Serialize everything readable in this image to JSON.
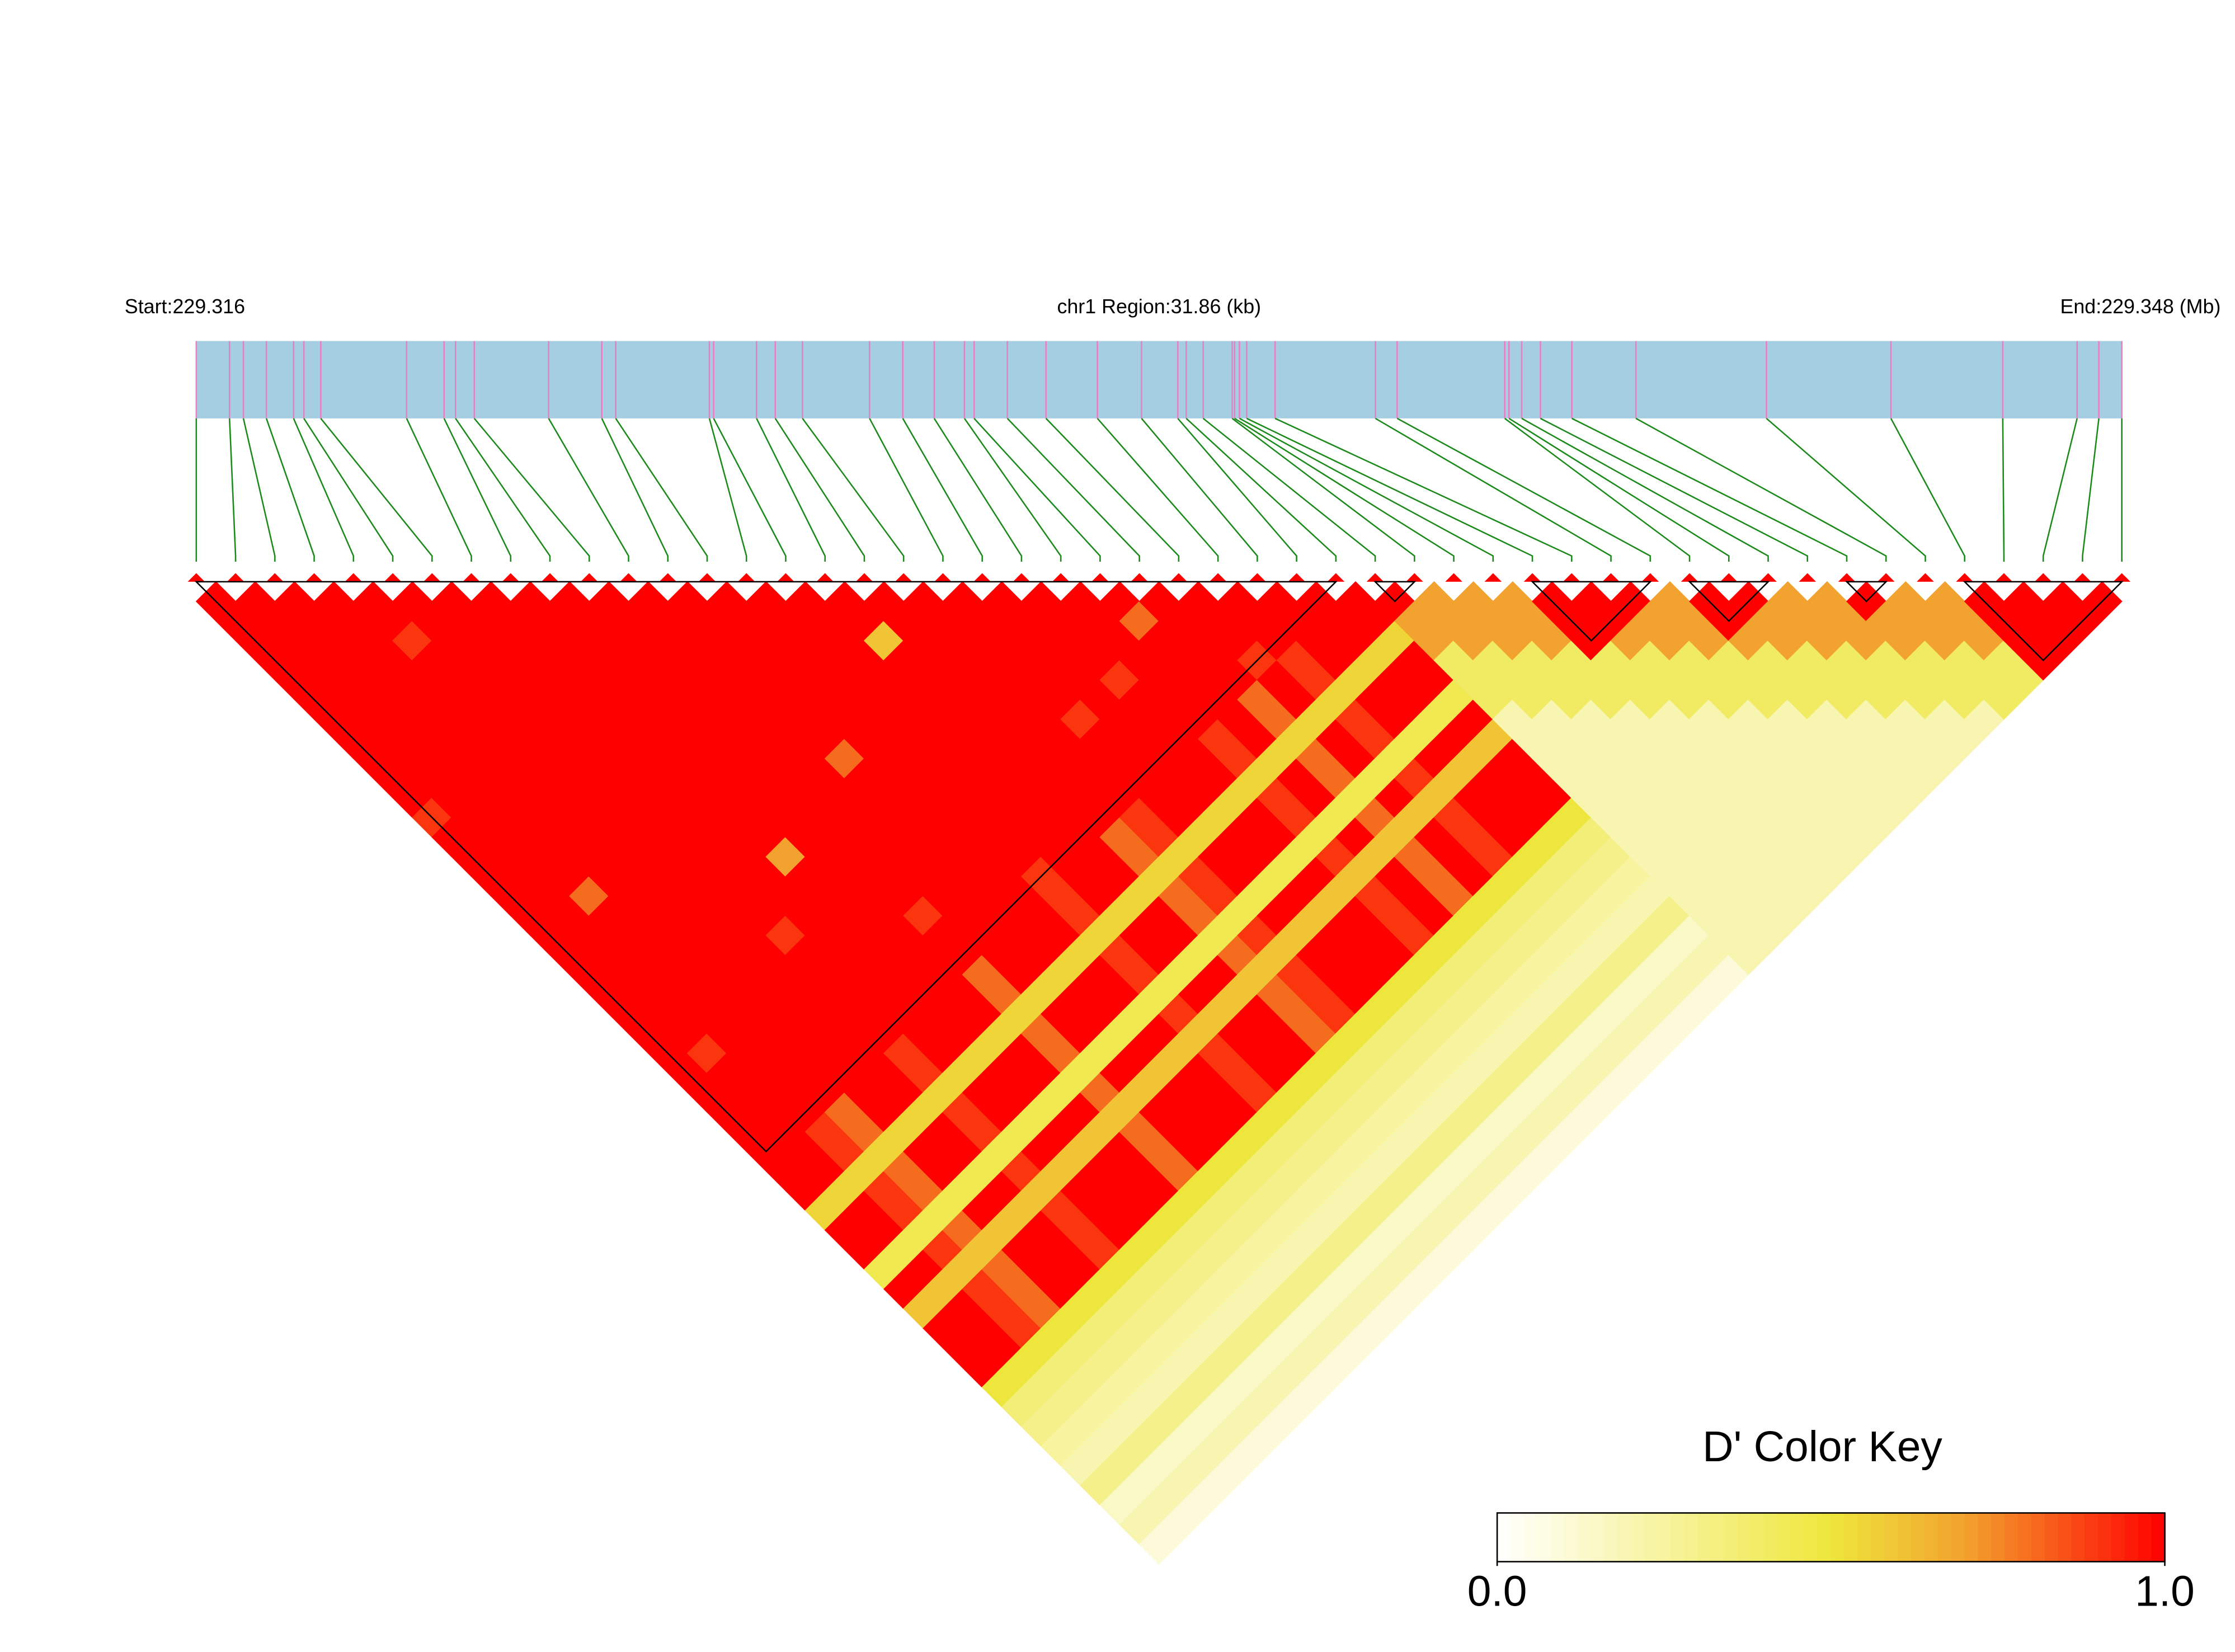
{
  "chart_data": {
    "type": "heatmap",
    "start_label": "Start:229.316",
    "region_label": "chr1 Region:31.86 (kb)",
    "end_label": "End:229.348 (Mb)",
    "xlim": [
      0,
      31.86
    ],
    "positions": [
      0,
      0.55,
      0.78,
      1.16,
      1.61,
      1.78,
      2.06,
      3.48,
      4.1,
      4.29,
      4.6,
      5.83,
      6.71,
      6.94,
      8.49,
      8.56,
      9.27,
      9.58,
      10.03,
      11.14,
      11.69,
      12.21,
      12.71,
      12.87,
      13.42,
      14.06,
      14.91,
      15.64,
      16.24,
      16.38,
      16.66,
      17.14,
      17.18,
      17.26,
      17.38,
      17.85,
      19.51,
      19.87,
      21.65,
      21.72,
      21.93,
      22.24,
      22.76,
      23.82,
      25.98,
      28.04,
      29.89,
      31.12,
      31.48,
      31.86
    ],
    "matrix": [
      [
        1,
        1,
        1,
        1,
        1,
        1,
        1,
        1,
        1,
        1,
        1,
        0.9,
        1,
        1,
        1,
        1,
        1,
        1,
        1,
        1,
        1,
        1,
        1,
        1,
        1,
        1,
        1,
        1,
        1,
        1,
        1,
        0.55,
        1,
        1,
        0.45,
        1,
        0.6,
        1,
        1,
        1,
        0.5,
        0.35,
        0.3,
        0.25,
        0.2,
        0.3,
        0.15,
        0.2,
        0.1
      ],
      [
        1,
        1,
        1,
        1,
        1,
        1,
        1,
        1,
        1,
        1,
        1,
        1,
        1,
        1,
        1,
        1,
        1,
        1,
        1,
        1,
        1,
        1,
        1,
        0.9,
        1,
        1,
        1,
        1,
        1,
        1,
        0.55,
        1,
        1,
        0.45,
        1,
        0.6,
        1,
        1,
        1,
        0.5,
        0.35,
        0.3,
        0.25,
        0.2,
        0.3,
        0.15,
        0.2,
        0.1
      ],
      [
        1,
        1,
        1,
        1,
        1,
        1,
        1,
        1,
        1,
        1,
        1,
        1,
        1,
        1,
        1,
        0.8,
        1,
        1,
        1,
        1,
        1,
        1,
        1,
        1,
        1,
        1,
        1,
        0.9,
        0.9,
        0.55,
        0.9,
        0.9,
        0.45,
        0.9,
        0.6,
        0.9,
        0.9,
        0.9,
        0.5,
        0.35,
        0.3,
        0.25,
        0.2,
        0.3,
        0.15,
        0.2,
        0.1
      ],
      [
        1,
        1,
        1,
        1,
        1,
        1,
        1,
        1,
        1,
        1,
        1,
        1,
        1,
        1,
        1,
        1,
        1,
        1,
        1,
        1,
        1,
        1,
        1,
        1,
        1,
        1,
        0.8,
        0.8,
        0.55,
        0.8,
        0.8,
        0.45,
        0.8,
        0.6,
        0.8,
        0.8,
        0.8,
        0.5,
        0.35,
        0.3,
        0.25,
        0.2,
        0.3,
        0.15,
        0.2,
        0.1
      ],
      [
        1,
        1,
        0.9,
        1,
        1,
        1,
        1,
        1,
        1,
        1,
        1,
        1,
        1,
        1,
        1,
        1,
        1,
        1,
        1,
        1,
        1,
        1,
        1,
        1,
        1,
        1,
        1,
        0.55,
        1,
        1,
        0.45,
        1,
        0.6,
        1,
        1,
        1,
        0.5,
        0.35,
        0.3,
        0.25,
        0.2,
        0.3,
        0.15,
        0.2,
        0.1
      ],
      [
        1,
        1,
        1,
        1,
        1,
        1,
        1,
        1,
        1,
        1,
        1,
        1,
        1,
        1,
        1,
        1,
        1,
        1,
        1,
        1,
        1,
        1,
        1,
        1,
        1,
        1,
        0.55,
        1,
        1,
        0.45,
        1,
        0.6,
        1,
        1,
        1,
        0.5,
        0.35,
        0.3,
        0.25,
        0.2,
        0.3,
        0.15,
        0.2,
        0.1
      ],
      [
        1,
        1,
        1,
        1,
        1,
        1,
        1,
        1,
        1,
        1,
        1,
        1,
        1,
        1,
        1,
        1,
        1,
        0.9,
        1,
        1,
        1,
        1,
        1,
        0.9,
        0.9,
        0.55,
        0.9,
        0.9,
        0.45,
        0.9,
        0.6,
        0.9,
        0.9,
        0.9,
        0.5,
        0.35,
        0.3,
        0.25,
        0.2,
        0.3,
        0.15,
        0.2,
        0.1
      ],
      [
        1,
        1,
        1,
        1,
        1,
        1,
        1,
        1,
        1,
        1,
        1,
        1,
        1,
        1,
        1,
        1,
        1,
        1,
        1,
        1,
        1,
        1,
        1,
        1,
        0.55,
        1,
        1,
        0.45,
        1,
        0.6,
        1,
        1,
        1,
        0.5,
        0.35,
        0.3,
        0.25,
        0.2,
        0.3,
        0.15,
        0.2,
        0.1
      ],
      [
        1,
        1,
        1,
        1,
        1,
        1,
        1,
        1,
        1,
        1,
        1,
        1,
        1,
        0.7,
        1,
        1,
        1,
        1,
        1,
        1,
        1,
        1,
        1,
        0.55,
        1,
        1,
        0.45,
        1,
        0.6,
        1,
        1,
        1,
        0.5,
        0.35,
        0.3,
        0.25,
        0.2,
        0.3,
        0.15,
        0.2,
        0.1
      ],
      [
        1,
        1,
        1,
        1,
        1,
        1,
        1,
        1,
        1,
        1,
        1,
        1,
        1,
        1,
        1,
        1,
        1,
        1,
        1,
        1,
        1,
        1,
        0.55,
        1,
        1,
        0.45,
        1,
        0.6,
        1,
        1,
        1,
        0.5,
        0.35,
        0.3,
        0.25,
        0.2,
        0.3,
        0.15,
        0.2,
        0.1
      ],
      [
        1,
        1,
        1,
        1,
        1,
        1,
        1,
        1,
        1,
        1,
        1,
        1,
        1,
        1,
        1,
        1,
        0.9,
        1,
        1,
        0.8,
        0.8,
        0.55,
        0.8,
        0.8,
        0.45,
        0.8,
        0.6,
        0.8,
        0.8,
        0.8,
        0.5,
        0.35,
        0.3,
        0.25,
        0.2,
        0.3,
        0.15,
        0.2,
        0.1
      ],
      [
        1,
        1,
        1,
        1,
        1,
        1,
        1,
        1,
        1,
        1,
        1,
        1,
        1,
        1,
        1,
        1,
        1,
        1,
        1,
        1,
        0.55,
        1,
        1,
        0.45,
        1,
        0.6,
        1,
        1,
        1,
        0.5,
        0.35,
        0.3,
        0.25,
        0.2,
        0.3,
        0.15,
        0.2,
        0.1
      ],
      [
        1,
        1,
        1,
        1,
        1,
        1,
        1,
        1,
        0.8,
        1,
        1,
        1,
        1,
        1,
        1,
        1,
        1,
        1,
        1,
        0.55,
        1,
        1,
        0.45,
        1,
        0.6,
        1,
        1,
        1,
        0.5,
        0.35,
        0.3,
        0.25,
        0.2,
        0.3,
        0.15,
        0.2,
        0.1
      ],
      [
        1,
        1,
        1,
        1,
        1,
        1,
        1,
        1,
        1,
        1,
        1,
        1,
        1,
        1,
        1,
        1,
        1,
        1,
        0.55,
        1,
        1,
        0.45,
        1,
        0.6,
        1,
        1,
        1,
        0.5,
        0.35,
        0.3,
        0.25,
        0.2,
        0.3,
        0.15,
        0.2,
        0.1
      ],
      [
        1,
        1,
        1,
        1,
        1,
        1,
        1,
        1,
        1,
        1,
        1,
        1,
        1,
        1,
        0.9,
        0.9,
        0.9,
        0.55,
        0.9,
        0.9,
        0.45,
        0.9,
        0.6,
        0.9,
        0.9,
        0.9,
        0.5,
        0.35,
        0.3,
        0.25,
        0.2,
        0.3,
        0.15,
        0.2,
        0.1
      ],
      [
        1,
        1,
        1,
        1,
        1,
        1,
        1,
        1,
        1,
        1,
        1,
        1,
        1,
        1,
        1,
        1,
        0.55,
        1,
        1,
        0.45,
        1,
        0.6,
        1,
        1,
        1,
        0.5,
        0.35,
        0.3,
        0.25,
        0.2,
        0.3,
        0.15,
        0.2,
        0.1
      ],
      [
        1,
        1,
        0.6,
        1,
        1,
        1,
        1,
        1,
        1,
        1,
        1,
        1,
        1,
        1,
        1,
        0.55,
        1,
        1,
        0.45,
        1,
        0.6,
        1,
        1,
        1,
        0.5,
        0.35,
        0.3,
        0.25,
        0.2,
        0.3,
        0.15,
        0.2,
        0.1
      ],
      [
        1,
        1,
        1,
        1,
        1,
        1,
        1,
        1,
        1,
        1,
        1,
        1,
        0.8,
        0.8,
        0.55,
        0.8,
        0.8,
        0.45,
        0.8,
        0.6,
        0.8,
        0.8,
        0.8,
        0.5,
        0.35,
        0.3,
        0.25,
        0.2,
        0.3,
        0.15,
        0.2,
        0.1
      ],
      [
        1,
        1,
        1,
        1,
        1,
        1,
        1,
        1,
        1,
        1,
        1,
        0.9,
        0.9,
        0.55,
        0.9,
        0.9,
        0.45,
        0.9,
        0.6,
        0.9,
        0.9,
        0.9,
        0.5,
        0.35,
        0.3,
        0.25,
        0.2,
        0.3,
        0.15,
        0.2,
        0.1
      ],
      [
        1,
        1,
        1,
        1,
        1,
        1,
        0.9,
        1,
        1,
        1,
        1,
        1,
        0.55,
        1,
        1,
        0.45,
        1,
        0.6,
        1,
        1,
        1,
        0.5,
        0.35,
        0.3,
        0.25,
        0.2,
        0.3,
        0.15,
        0.2,
        0.1
      ],
      [
        1,
        1,
        1,
        1,
        1,
        1,
        1,
        1,
        1,
        1,
        1,
        0.55,
        1,
        1,
        0.45,
        1,
        0.6,
        1,
        1,
        1,
        0.5,
        0.35,
        0.3,
        0.25,
        0.2,
        0.3,
        0.15,
        0.2,
        0.1
      ],
      [
        1,
        1,
        1,
        1,
        0.9,
        1,
        1,
        1,
        1,
        1,
        0.55,
        1,
        1,
        0.45,
        1,
        0.6,
        1,
        1,
        1,
        0.5,
        0.35,
        0.3,
        0.25,
        0.2,
        0.3,
        0.15,
        0.2,
        0.1
      ],
      [
        1,
        1,
        1,
        1,
        1,
        1,
        1,
        0.9,
        0.9,
        0.55,
        0.9,
        0.9,
        0.45,
        0.9,
        0.6,
        0.9,
        0.9,
        0.9,
        0.5,
        0.35,
        0.3,
        0.25,
        0.2,
        0.3,
        0.15,
        0.2,
        0.1
      ],
      [
        1,
        0.8,
        1,
        1,
        1,
        1,
        1,
        1,
        0.55,
        1,
        1,
        0.45,
        1,
        0.6,
        1,
        1,
        1,
        0.5,
        0.35,
        0.3,
        0.25,
        0.2,
        0.3,
        0.15,
        0.2,
        0.1
      ],
      [
        1,
        1,
        1,
        1,
        1,
        0.8,
        0.8,
        0.55,
        0.8,
        0.8,
        0.45,
        0.8,
        0.6,
        0.8,
        0.8,
        0.8,
        0.5,
        0.35,
        0.3,
        0.25,
        0.2,
        0.3,
        0.15,
        0.2,
        0.1
      ],
      [
        1,
        1,
        1,
        0.9,
        1,
        1,
        0.55,
        1,
        1,
        0.45,
        1,
        0.6,
        1,
        1,
        1,
        0.5,
        0.35,
        0.3,
        0.25,
        0.2,
        0.3,
        0.15,
        0.2,
        0.1
      ],
      [
        1,
        1,
        1,
        0.9,
        0.9,
        0.55,
        0.9,
        0.9,
        0.45,
        0.9,
        0.6,
        0.9,
        0.9,
        0.9,
        0.5,
        0.35,
        0.3,
        0.25,
        0.2,
        0.3,
        0.15,
        0.2,
        0.1
      ],
      [
        1,
        1,
        1,
        1,
        0.55,
        1,
        1,
        0.45,
        1,
        0.6,
        1,
        1,
        1,
        0.5,
        0.35,
        0.3,
        0.25,
        0.2,
        0.3,
        0.15,
        0.2,
        0.1
      ],
      [
        1,
        1,
        1,
        0.55,
        1,
        1,
        0.45,
        1,
        0.6,
        1,
        1,
        1,
        0.5,
        0.35,
        0.3,
        0.25,
        0.2,
        0.3,
        0.15,
        0.2,
        0.1
      ],
      [
        1,
        1,
        0.55,
        1,
        1,
        0.45,
        1,
        0.6,
        1,
        1,
        1,
        0.5,
        0.35,
        0.3,
        0.25,
        0.2,
        0.3,
        0.15,
        0.2,
        0.1
      ],
      [
        1,
        0.7,
        0.7,
        0.4,
        0.4,
        0.4,
        0.2,
        0.2,
        0.2,
        0.2,
        0.2,
        0.2,
        0.2,
        0.2,
        0.2,
        0.2,
        0.2,
        0.2,
        0.2
      ],
      [
        0.7,
        0.7,
        0.7,
        0.4,
        0.4,
        0.4,
        0.2,
        0.2,
        0.2,
        0.2,
        0.2,
        0.2,
        0.2,
        0.2,
        0.2,
        0.2,
        0.2,
        0.2
      ],
      [
        0.7,
        0.7,
        0.7,
        0.4,
        0.4,
        0.4,
        0.2,
        0.2,
        0.2,
        0.2,
        0.2,
        0.2,
        0.2,
        0.2,
        0.2,
        0.2,
        0.2
      ],
      [
        0.7,
        0.7,
        0.7,
        0.4,
        0.4,
        0.4,
        0.2,
        0.2,
        0.2,
        0.2,
        0.2,
        0.2,
        0.2,
        0.2,
        0.2,
        0.2
      ],
      [
        1,
        1,
        1,
        0.4,
        0.4,
        0.4,
        0.2,
        0.2,
        0.2,
        0.2,
        0.2,
        0.2,
        0.2,
        0.2,
        0.2
      ],
      [
        1,
        1,
        0.7,
        0.4,
        0.4,
        0.4,
        0.2,
        0.2,
        0.2,
        0.2,
        0.2,
        0.2,
        0.2,
        0.2
      ],
      [
        1,
        0.7,
        0.7,
        0.4,
        0.4,
        0.4,
        0.2,
        0.2,
        0.2,
        0.2,
        0.2,
        0.2,
        0.2
      ],
      [
        0.7,
        0.7,
        0.7,
        0.4,
        0.4,
        0.4,
        0.2,
        0.2,
        0.2,
        0.2,
        0.2,
        0.2
      ],
      [
        1,
        1,
        0.7,
        0.4,
        0.4,
        0.4,
        0.2,
        0.2,
        0.2,
        0.2,
        0.2
      ],
      [
        1,
        0.7,
        0.7,
        0.4,
        0.4,
        0.4,
        0.2,
        0.2,
        0.2,
        0.2
      ],
      [
        0.7,
        0.7,
        0.7,
        0.4,
        0.4,
        0.4,
        0.2,
        0.2,
        0.2
      ],
      [
        0.7,
        0.7,
        0.7,
        0.4,
        0.4,
        0.4,
        0.2,
        0.2
      ],
      [
        1,
        0.7,
        0.7,
        0.4,
        0.4,
        0.4,
        0.2
      ],
      [
        0.7,
        0.7,
        0.7,
        0.4,
        0.4,
        0.4
      ],
      [
        0.7,
        0.7,
        0.7,
        0.4,
        0.4
      ],
      [
        1,
        1,
        1,
        1
      ],
      [
        1,
        1,
        1
      ],
      [
        1,
        1
      ],
      [
        1
      ]
    ],
    "blocks": [
      [
        0,
        29
      ],
      [
        30,
        31
      ],
      [
        34,
        37
      ],
      [
        38,
        40
      ],
      [
        42,
        43
      ],
      [
        45,
        49
      ]
    ],
    "bar_color": "#a6cee3",
    "position_color": "#e87fc0",
    "connector_color": "#1b8a1b",
    "color_stops": [
      {
        "value": 0,
        "color": "#ffffff"
      },
      {
        "value": 0.5,
        "color": "#eee63c"
      },
      {
        "value": 0.7,
        "color": "#f2a22e"
      },
      {
        "value": 1,
        "color": "#ff0000"
      }
    ],
    "colorbar": {
      "title": "D' Color Key",
      "lim": [
        0,
        1
      ],
      "ticks": [
        {
          "value": 0,
          "label": "0.0"
        },
        {
          "value": 1,
          "label": "1.0"
        }
      ]
    }
  }
}
